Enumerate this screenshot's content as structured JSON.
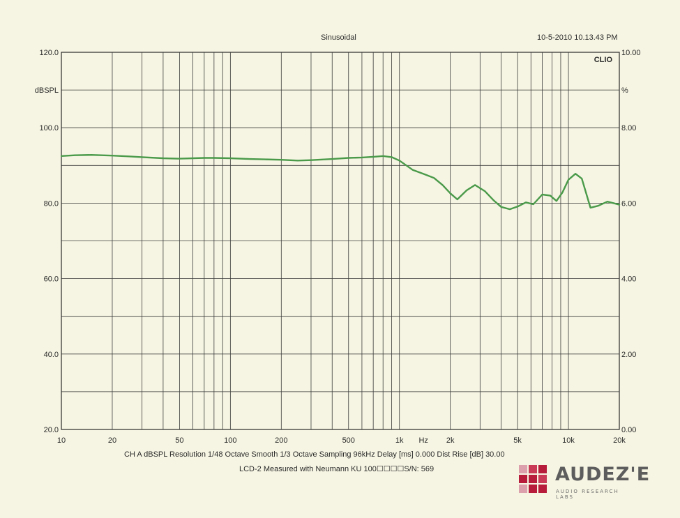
{
  "header": {
    "title": "Sinusoidal",
    "timestamp": "10-5-2010 10.13.43 PM"
  },
  "footer": {
    "settings": "CH A   dBSPL   Resolution 1/48 Octave   Smooth 1/3 Octave   Sampling 96kHz   Delay [ms] 0.000   Dist Rise [dB] 30.00",
    "caption": "LCD-2 Measured with Neumann KU 100☐☐☐☐S/N: 569"
  },
  "logo": {
    "name": "AUDEZ'E",
    "tagline": "AUDIO RESEARCH LABS",
    "colors": [
      "#b71c3a",
      "#c83a55",
      "#dca0ad"
    ]
  },
  "chart_data": {
    "type": "line",
    "corner_label": "CLIO",
    "xlabel": "Hz",
    "ylabel": "dBSPL",
    "y2label": "%",
    "xscale": "log",
    "xlim": [
      10,
      20000
    ],
    "ylim": [
      20,
      120
    ],
    "y2lim": [
      0,
      10
    ],
    "grid": true,
    "x_ticks": [
      {
        "value": 10,
        "label": "10"
      },
      {
        "value": 20,
        "label": "20"
      },
      {
        "value": 50,
        "label": "50"
      },
      {
        "value": 100,
        "label": "100"
      },
      {
        "value": 200,
        "label": "200"
      },
      {
        "value": 500,
        "label": "500"
      },
      {
        "value": 1000,
        "label": "1k"
      },
      {
        "value": 2000,
        "label": "2k"
      },
      {
        "value": 5000,
        "label": "5k"
      },
      {
        "value": 10000,
        "label": "10k"
      },
      {
        "value": 20000,
        "label": "20k"
      }
    ],
    "y_ticks": [
      {
        "value": 20,
        "label": "20.0"
      },
      {
        "value": 40,
        "label": "40.0"
      },
      {
        "value": 60,
        "label": "60.0"
      },
      {
        "value": 80,
        "label": "80.0"
      },
      {
        "value": 100,
        "label": "100.0"
      },
      {
        "value": 120,
        "label": "120.0"
      }
    ],
    "y2_ticks": [
      {
        "value": 0,
        "label": "0.00"
      },
      {
        "value": 2,
        "label": "2.00"
      },
      {
        "value": 4,
        "label": "4.00"
      },
      {
        "value": 6,
        "label": "6.00"
      },
      {
        "value": 8,
        "label": "8.00"
      },
      {
        "value": 10,
        "label": "10.00"
      }
    ],
    "series": [
      {
        "color": "#4a9a4a",
        "x": [
          10,
          12,
          15,
          20,
          25,
          30,
          40,
          50,
          60,
          70,
          80,
          100,
          130,
          160,
          200,
          250,
          300,
          400,
          500,
          600,
          700,
          800,
          900,
          1000,
          1200,
          1400,
          1600,
          1800,
          2000,
          2200,
          2500,
          2800,
          3200,
          3600,
          4000,
          4500,
          5000,
          5600,
          6200,
          7000,
          7800,
          8500,
          9200,
          10000,
          11000,
          12000,
          13500,
          15000,
          17000,
          18500,
          20000
        ],
        "y": [
          92.5,
          92.7,
          92.8,
          92.6,
          92.4,
          92.2,
          91.9,
          91.8,
          91.9,
          92.0,
          92.0,
          91.9,
          91.7,
          91.6,
          91.5,
          91.3,
          91.4,
          91.7,
          92.0,
          92.1,
          92.3,
          92.5,
          92.2,
          91.3,
          88.8,
          87.7,
          86.7,
          84.8,
          82.6,
          81.0,
          83.4,
          84.8,
          83.2,
          80.8,
          79.0,
          78.4,
          79.1,
          80.2,
          79.7,
          82.3,
          82.0,
          80.6,
          82.8,
          86.2,
          87.8,
          86.5,
          78.8,
          79.3,
          80.4,
          80.0,
          79.6
        ]
      }
    ]
  }
}
